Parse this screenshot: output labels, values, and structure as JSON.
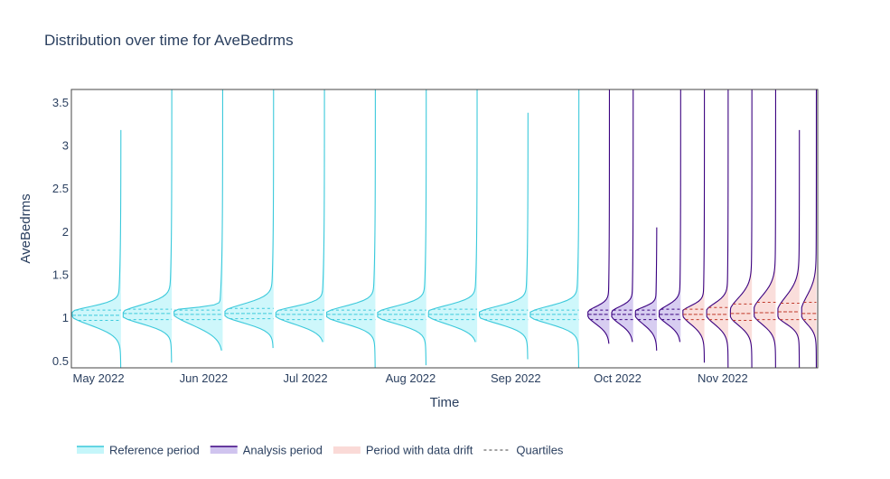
{
  "chart_data": {
    "type": "violin",
    "title": "Distribution over time for AveBedrms",
    "xlabel": "Time",
    "ylabel": "AveBedrms",
    "ylim": [
      0.42,
      3.65
    ],
    "yticks": [
      "0.5",
      "1",
      "1.5",
      "2",
      "2.5",
      "3",
      "3.5"
    ],
    "ytick_values": [
      0.5,
      1,
      1.5,
      2,
      2.5,
      3,
      3.5
    ],
    "xlim": [
      "2022-04-23",
      "2022-11-29"
    ],
    "xticks": [
      "May 2022",
      "Jun 2022",
      "Jul 2022",
      "Aug 2022",
      "Sep 2022",
      "Oct 2022",
      "Nov 2022"
    ],
    "xtick_dates": [
      "2022-05-01",
      "2022-06-01",
      "2022-07-01",
      "2022-08-01",
      "2022-09-01",
      "2022-10-01",
      "2022-11-01"
    ],
    "grid": false,
    "legend_position": "bottom",
    "colors": {
      "reference": "#3bc9db",
      "reference_fill": "#c5f6fa",
      "analysis": "#3b0280",
      "analysis_fill": "#d0c4ef",
      "drift": "#e8a09b",
      "drift_fill": "#fadad7",
      "quartile_reference": "#3bc9db",
      "quartile_analysis": "#3b0280",
      "quartile_drift": "#c0392b",
      "axis": "#444444"
    },
    "legend": [
      {
        "label": "Reference period",
        "kind": "reference"
      },
      {
        "label": "Analysis period",
        "kind": "analysis"
      },
      {
        "label": "Period with data drift",
        "kind": "drift"
      },
      {
        "label": "Quartiles",
        "kind": "quartiles"
      }
    ],
    "periods": [
      {
        "start": "2022-04-23",
        "end": "2022-05-08",
        "kind": "reference",
        "min": 0.42,
        "max": 3.18,
        "q1": 0.97,
        "median": 1.03,
        "q3": 1.09,
        "peak": 1.05
      },
      {
        "start": "2022-05-08",
        "end": "2022-05-23",
        "kind": "reference",
        "min": 0.48,
        "max": 3.65,
        "q1": 0.98,
        "median": 1.05,
        "q3": 1.1,
        "peak": 1.04
      },
      {
        "start": "2022-05-23",
        "end": "2022-06-07",
        "kind": "reference",
        "min": 0.62,
        "max": 3.65,
        "q1": 0.98,
        "median": 1.04,
        "q3": 1.09,
        "peak": 1.08
      },
      {
        "start": "2022-06-07",
        "end": "2022-06-22",
        "kind": "reference",
        "min": 0.65,
        "max": 3.65,
        "q1": 0.99,
        "median": 1.05,
        "q3": 1.11,
        "peak": 1.05
      },
      {
        "start": "2022-06-22",
        "end": "2022-07-07",
        "kind": "reference",
        "min": 0.72,
        "max": 3.65,
        "q1": 0.98,
        "median": 1.04,
        "q3": 1.09,
        "peak": 1.05
      },
      {
        "start": "2022-07-07",
        "end": "2022-07-22",
        "kind": "reference",
        "min": 0.42,
        "max": 3.65,
        "q1": 0.98,
        "median": 1.04,
        "q3": 1.09,
        "peak": 1.04
      },
      {
        "start": "2022-07-22",
        "end": "2022-08-06",
        "kind": "reference",
        "min": 0.45,
        "max": 3.65,
        "q1": 0.98,
        "median": 1.04,
        "q3": 1.09,
        "peak": 1.04
      },
      {
        "start": "2022-08-06",
        "end": "2022-08-21",
        "kind": "reference",
        "min": 0.72,
        "max": 3.65,
        "q1": 0.98,
        "median": 1.04,
        "q3": 1.1,
        "peak": 1.05
      },
      {
        "start": "2022-08-21",
        "end": "2022-09-05",
        "kind": "reference",
        "min": 0.52,
        "max": 3.38,
        "q1": 0.98,
        "median": 1.04,
        "q3": 1.09,
        "peak": 1.04
      },
      {
        "start": "2022-09-05",
        "end": "2022-09-20",
        "kind": "reference",
        "min": 0.42,
        "max": 3.65,
        "q1": 0.98,
        "median": 1.04,
        "q3": 1.09,
        "peak": 1.04
      },
      {
        "start": "2022-09-22",
        "end": "2022-09-29",
        "kind": "analysis",
        "min": 0.7,
        "max": 3.65,
        "q1": 0.98,
        "median": 1.04,
        "q3": 1.09,
        "peak": 1.05
      },
      {
        "start": "2022-09-29",
        "end": "2022-10-06",
        "kind": "analysis",
        "min": 0.72,
        "max": 3.65,
        "q1": 0.98,
        "median": 1.04,
        "q3": 1.09,
        "peak": 1.05
      },
      {
        "start": "2022-10-06",
        "end": "2022-10-13",
        "kind": "analysis",
        "min": 0.62,
        "max": 2.05,
        "q1": 0.98,
        "median": 1.04,
        "q3": 1.09,
        "peak": 1.06
      },
      {
        "start": "2022-10-13",
        "end": "2022-10-20",
        "kind": "analysis",
        "min": 0.72,
        "max": 3.65,
        "q1": 0.98,
        "median": 1.04,
        "q3": 1.1,
        "peak": 1.05
      },
      {
        "start": "2022-10-20",
        "end": "2022-10-27",
        "kind": "drift",
        "min": 0.48,
        "max": 3.65,
        "q1": 0.98,
        "median": 1.04,
        "q3": 1.1,
        "peak": 1.06
      },
      {
        "start": "2022-10-27",
        "end": "2022-11-03",
        "kind": "drift",
        "min": 0.42,
        "max": 3.65,
        "q1": 0.98,
        "median": 1.04,
        "q3": 1.12,
        "peak": 1.06
      },
      {
        "start": "2022-11-03",
        "end": "2022-11-10",
        "kind": "drift",
        "min": 0.42,
        "max": 3.65,
        "q1": 0.97,
        "median": 1.05,
        "q3": 1.16,
        "peak": 1.05
      },
      {
        "start": "2022-11-10",
        "end": "2022-11-17",
        "kind": "drift",
        "min": 0.42,
        "max": 3.65,
        "q1": 0.98,
        "median": 1.06,
        "q3": 1.18,
        "peak": 1.06
      },
      {
        "start": "2022-11-17",
        "end": "2022-11-24",
        "kind": "drift",
        "min": 0.42,
        "max": 3.18,
        "q1": 0.98,
        "median": 1.07,
        "q3": 1.17,
        "peak": 1.04
      },
      {
        "start": "2022-11-24",
        "end": "2022-11-29",
        "kind": "drift",
        "min": 0.42,
        "max": 3.65,
        "q1": 0.98,
        "median": 1.05,
        "q3": 1.18,
        "peak": 1.05
      }
    ]
  }
}
